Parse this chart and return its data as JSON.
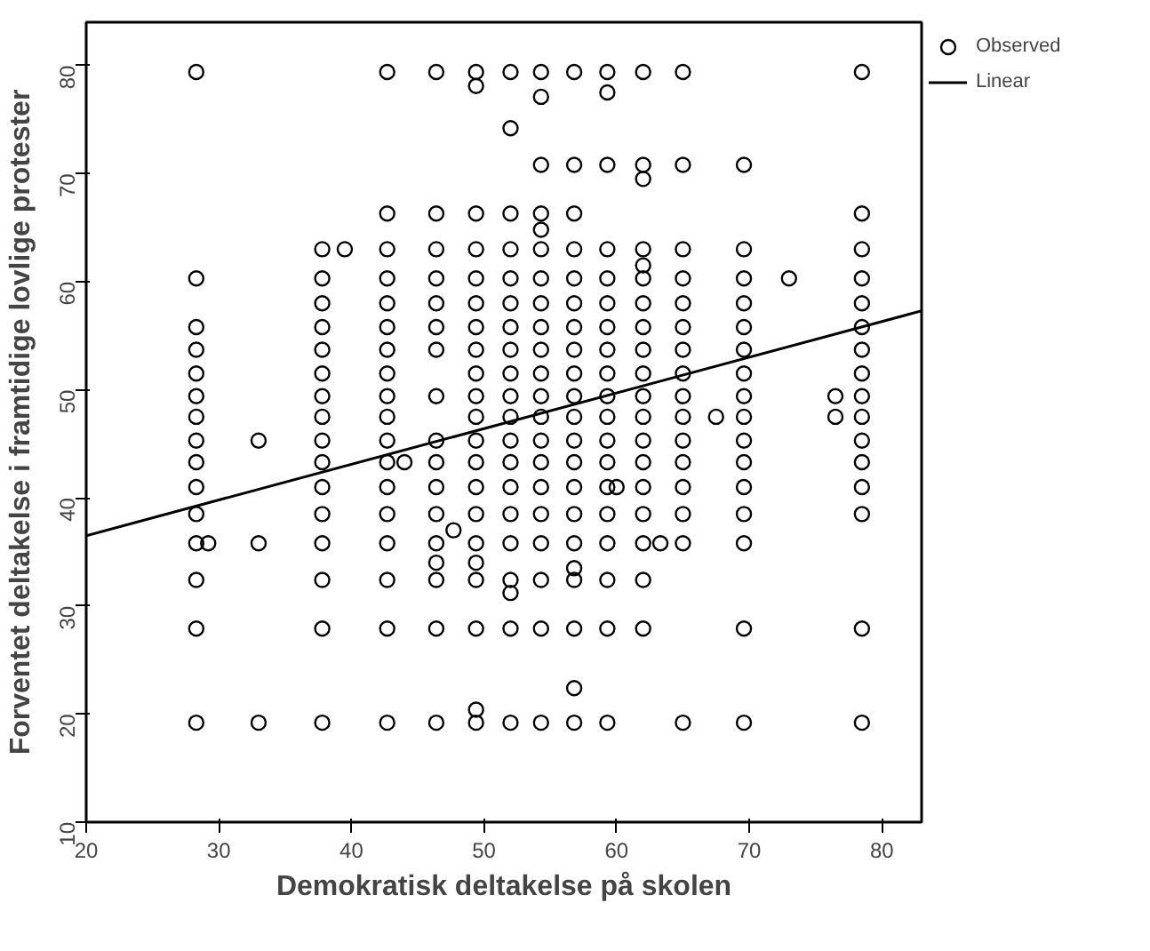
{
  "chart_data": {
    "type": "scatter",
    "xlabel": "Demokratisk deltakelse på skolen",
    "ylabel": "Forventet deltakelse i framtidige lovlige protester",
    "xlim": [
      20,
      83
    ],
    "ylim": [
      10,
      84
    ],
    "xticks": [
      20,
      30,
      40,
      50,
      60,
      70,
      80
    ],
    "yticks": [
      10,
      20,
      30,
      40,
      50,
      60,
      70,
      80
    ],
    "grid": false,
    "legend": "right",
    "marker": "circle",
    "series": [
      {
        "name": "Observed",
        "color": "#000000",
        "x": [
          28.3,
          28.3,
          28.3,
          28.3,
          28.3,
          28.3,
          28.3,
          28.3,
          28.3,
          28.3,
          28.3,
          28.3,
          28.3,
          28.3,
          28.3
        ],
        "values": [
          79.4,
          60.3,
          55.8,
          53.7,
          51.5,
          49.4,
          47.5,
          45.3,
          43.3,
          41,
          38.5,
          35.8,
          32.4,
          27.9,
          19.2
        ]
      },
      {
        "color": "#000000",
        "x": [
          29.2,
          33,
          33,
          33,
          39.5,
          44,
          47.7,
          60,
          63.3,
          67.5,
          73,
          76.5,
          76.5
        ],
        "values": [
          35.8,
          45.3,
          35.8,
          19.2,
          63,
          43.3,
          37,
          41,
          35.8,
          47.5,
          60.3,
          49.4,
          47.5
        ]
      },
      {
        "color": "#000000",
        "x": [
          37.8,
          37.8,
          37.8,
          37.8,
          37.8,
          37.8,
          37.8,
          37.8,
          37.8,
          37.8,
          37.8,
          37.8,
          37.8,
          37.8,
          37.8,
          37.8
        ],
        "values": [
          63,
          60.3,
          58,
          55.8,
          53.7,
          51.5,
          49.4,
          47.5,
          45.3,
          43.3,
          41,
          38.5,
          35.8,
          32.4,
          27.9,
          19.2
        ]
      },
      {
        "color": "#000000",
        "x": [
          42.7,
          42.7,
          42.7,
          42.7,
          42.7,
          42.7,
          42.7,
          42.7,
          42.7,
          42.7,
          42.7,
          42.7,
          42.7,
          42.7,
          42.7,
          42.7,
          42.7,
          42.7
        ],
        "values": [
          79.4,
          66.3,
          63,
          60.3,
          58,
          55.8,
          53.7,
          51.5,
          49.4,
          47.5,
          45.3,
          43.3,
          41,
          38.5,
          35.8,
          32.4,
          27.9,
          19.2
        ]
      },
      {
        "color": "#000000",
        "x": [
          46.4,
          46.4,
          46.4,
          46.4,
          46.4,
          46.4,
          46.4,
          46.4,
          46.4,
          46.4,
          46.4,
          46.4,
          46.4,
          46.4,
          46.4,
          46.4,
          46.4
        ],
        "values": [
          79.4,
          66.3,
          63,
          60.3,
          58,
          55.8,
          53.7,
          49.4,
          45.3,
          43.3,
          41,
          38.5,
          35.8,
          34,
          32.4,
          27.9,
          19.2
        ]
      },
      {
        "color": "#000000",
        "x": [
          49.4,
          49.4,
          49.4,
          49.4,
          49.4,
          49.4,
          49.4,
          49.4,
          49.4,
          49.4,
          49.4,
          49.4,
          49.4,
          49.4,
          49.4,
          49.4,
          49.4,
          49.4,
          49.4,
          49.4,
          49.4
        ],
        "values": [
          79.4,
          78.1,
          66.3,
          63,
          60.3,
          58,
          55.8,
          53.7,
          51.5,
          49.4,
          47.5,
          45.3,
          43.3,
          41,
          38.5,
          35.8,
          34,
          32.4,
          27.9,
          20.4,
          19.2
        ]
      },
      {
        "color": "#000000",
        "x": [
          52,
          52,
          52,
          52,
          52,
          52,
          52,
          52,
          52,
          52,
          52,
          52,
          52,
          52,
          52,
          52,
          52,
          52,
          52,
          52
        ],
        "values": [
          79.4,
          74.2,
          66.3,
          63,
          60.3,
          58,
          55.8,
          53.7,
          51.5,
          49.4,
          47.5,
          45.3,
          43.3,
          41,
          38.5,
          35.8,
          32.4,
          31.2,
          27.9,
          19.2
        ]
      },
      {
        "color": "#000000",
        "x": [
          54.3,
          54.3,
          54.3,
          54.3,
          54.3,
          54.3,
          54.3,
          54.3,
          54.3,
          54.3,
          54.3,
          54.3,
          54.3,
          54.3,
          54.3,
          54.3,
          54.3,
          54.3,
          54.3,
          54.3,
          54.3
        ],
        "values": [
          79.4,
          77.1,
          70.8,
          66.3,
          64.8,
          63,
          60.3,
          58,
          55.8,
          53.7,
          51.5,
          49.4,
          47.5,
          45.3,
          43.3,
          41,
          38.5,
          35.8,
          32.4,
          27.9,
          19.2
        ]
      },
      {
        "color": "#000000",
        "x": [
          56.8,
          56.8,
          56.8,
          56.8,
          56.8,
          56.8,
          56.8,
          56.8,
          56.8,
          56.8,
          56.8,
          56.8,
          56.8,
          56.8,
          56.8,
          56.8,
          56.8,
          56.8,
          56.8,
          56.8,
          56.8
        ],
        "values": [
          79.4,
          70.8,
          66.3,
          63,
          60.3,
          58,
          55.8,
          53.7,
          51.5,
          49.4,
          47.5,
          45.3,
          43.3,
          41,
          38.5,
          35.8,
          33.5,
          32.4,
          27.9,
          22.4,
          19.2
        ]
      },
      {
        "color": "#000000",
        "x": [
          59.3,
          59.3,
          59.3,
          59.3,
          59.3,
          59.3,
          59.3,
          59.3,
          59.3,
          59.3,
          59.3,
          59.3,
          59.3,
          59.3,
          59.3,
          59.3,
          59.3,
          59.3,
          59.3
        ],
        "values": [
          79.4,
          77.5,
          70.8,
          63,
          60.3,
          58,
          55.8,
          53.7,
          51.5,
          49.4,
          47.5,
          45.3,
          43.3,
          41,
          38.5,
          35.8,
          32.4,
          27.9,
          19.2
        ]
      },
      {
        "color": "#000000",
        "x": [
          62,
          62,
          62,
          62,
          62,
          62,
          62,
          62,
          62,
          62,
          62,
          62,
          62,
          62,
          62,
          62,
          62,
          62,
          62
        ],
        "values": [
          79.4,
          70.8,
          69.5,
          63,
          61.5,
          60.3,
          58,
          55.8,
          53.7,
          51.5,
          49.4,
          47.5,
          45.3,
          43.3,
          41,
          38.5,
          35.8,
          32.4,
          27.9
        ]
      },
      {
        "color": "#000000",
        "x": [
          65,
          65,
          65,
          65,
          65,
          65,
          65,
          65,
          65,
          65,
          65,
          65,
          65,
          65,
          65,
          65
        ],
        "values": [
          79.4,
          70.8,
          63,
          60.3,
          58,
          55.8,
          53.7,
          51.5,
          49.4,
          47.5,
          45.3,
          43.3,
          41,
          38.5,
          35.8,
          19.2
        ]
      },
      {
        "color": "#000000",
        "x": [
          69.6,
          69.6,
          69.6,
          69.6,
          69.6,
          69.6,
          69.6,
          69.6,
          69.6,
          69.6,
          69.6,
          69.6,
          69.6,
          69.6,
          69.6,
          69.6
        ],
        "values": [
          70.8,
          63,
          60.3,
          58,
          55.8,
          53.7,
          51.5,
          49.4,
          47.5,
          45.3,
          43.3,
          41,
          38.5,
          35.8,
          27.9,
          19.2
        ]
      },
      {
        "color": "#000000",
        "x": [
          78.5,
          78.5,
          78.5,
          78.5,
          78.5,
          78.5,
          78.5,
          78.5,
          78.5,
          78.5,
          78.5,
          78.5,
          78.5,
          78.5,
          78.5,
          78.5
        ],
        "values": [
          79.4,
          66.3,
          63,
          60.3,
          58,
          55.8,
          53.7,
          51.5,
          49.4,
          47.5,
          45.3,
          43.3,
          41,
          38.5,
          27.9,
          19.2
        ]
      },
      {
        "name": "Linear",
        "type": "line",
        "color": "#000000",
        "line_style": "solid",
        "marker": "none",
        "x": [
          20,
          83
        ],
        "values": [
          36.5,
          57.3
        ]
      }
    ]
  }
}
